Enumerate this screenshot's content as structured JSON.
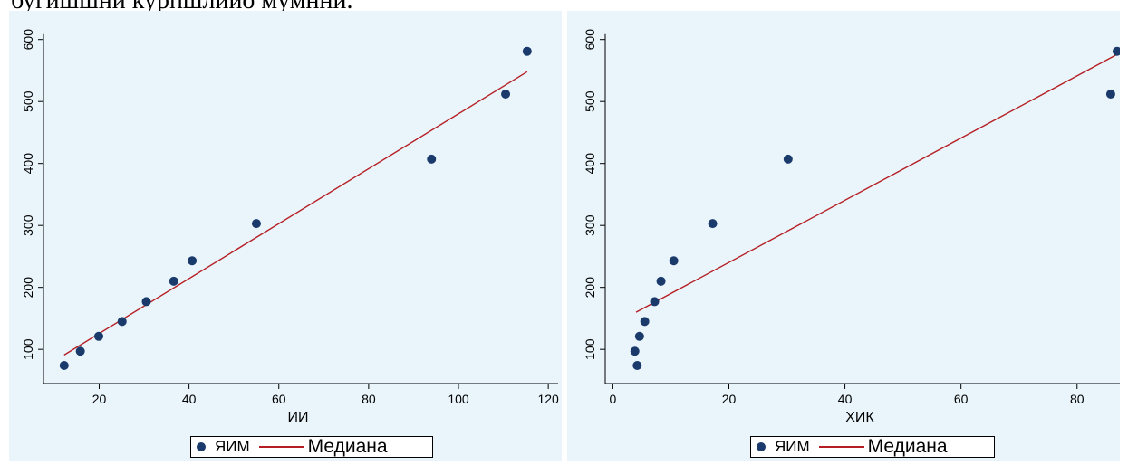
{
  "caption": "бугишшни курпшлиио мумнни.",
  "colors": {
    "panel_bg": "#e9f5fb",
    "point": "#1a3a6c",
    "fit_line": "#b51f24",
    "axis": "#000000"
  },
  "chart_data": [
    {
      "type": "scatter",
      "title": "",
      "xlabel": "ИИ",
      "ylabel": "",
      "xlim": [
        8,
        123
      ],
      "ylim": [
        55,
        620
      ],
      "xticks": [
        20,
        40,
        60,
        80,
        100,
        120
      ],
      "yticks": [
        100,
        200,
        300,
        400,
        500,
        600
      ],
      "grid": false,
      "legend_position": "bottom",
      "series": [
        {
          "name": "ЯИМ",
          "kind": "points",
          "x": [
            12.2,
            15.8,
            19.9,
            25.1,
            30.5,
            36.6,
            40.7,
            55.0,
            94.0,
            110.5,
            115.3
          ],
          "y": [
            74,
            97,
            121,
            145,
            177,
            210,
            243,
            303,
            407,
            512,
            581
          ]
        },
        {
          "name": "Медиана",
          "kind": "line",
          "x": [
            12.2,
            115.3
          ],
          "y": [
            91,
            548
          ]
        }
      ],
      "legend": {
        "series_label": "ЯИМ",
        "fit_label": "Медиана"
      }
    },
    {
      "type": "scatter",
      "title": "",
      "xlabel": "ХИК",
      "ylabel": "",
      "xlim": [
        -1,
        88
      ],
      "ylim": [
        55,
        620
      ],
      "xticks": [
        0,
        20,
        40,
        60,
        80
      ],
      "yticks": [
        100,
        200,
        300,
        400,
        500,
        600
      ],
      "grid": false,
      "legend_position": "bottom",
      "series": [
        {
          "name": "ЯИМ",
          "kind": "points",
          "x": [
            3.8,
            4.2,
            4.6,
            5.5,
            7.2,
            8.3,
            10.5,
            17.2,
            30.2,
            85.8,
            86.9
          ],
          "y": [
            97,
            74,
            121,
            145,
            177,
            210,
            243,
            303,
            407,
            512,
            581
          ]
        },
        {
          "name": "Медиана",
          "kind": "line",
          "x": [
            4.0,
            86.9
          ],
          "y": [
            160,
            576
          ]
        }
      ],
      "legend": {
        "series_label": "ЯИМ",
        "fit_label": "Медиана"
      }
    }
  ]
}
